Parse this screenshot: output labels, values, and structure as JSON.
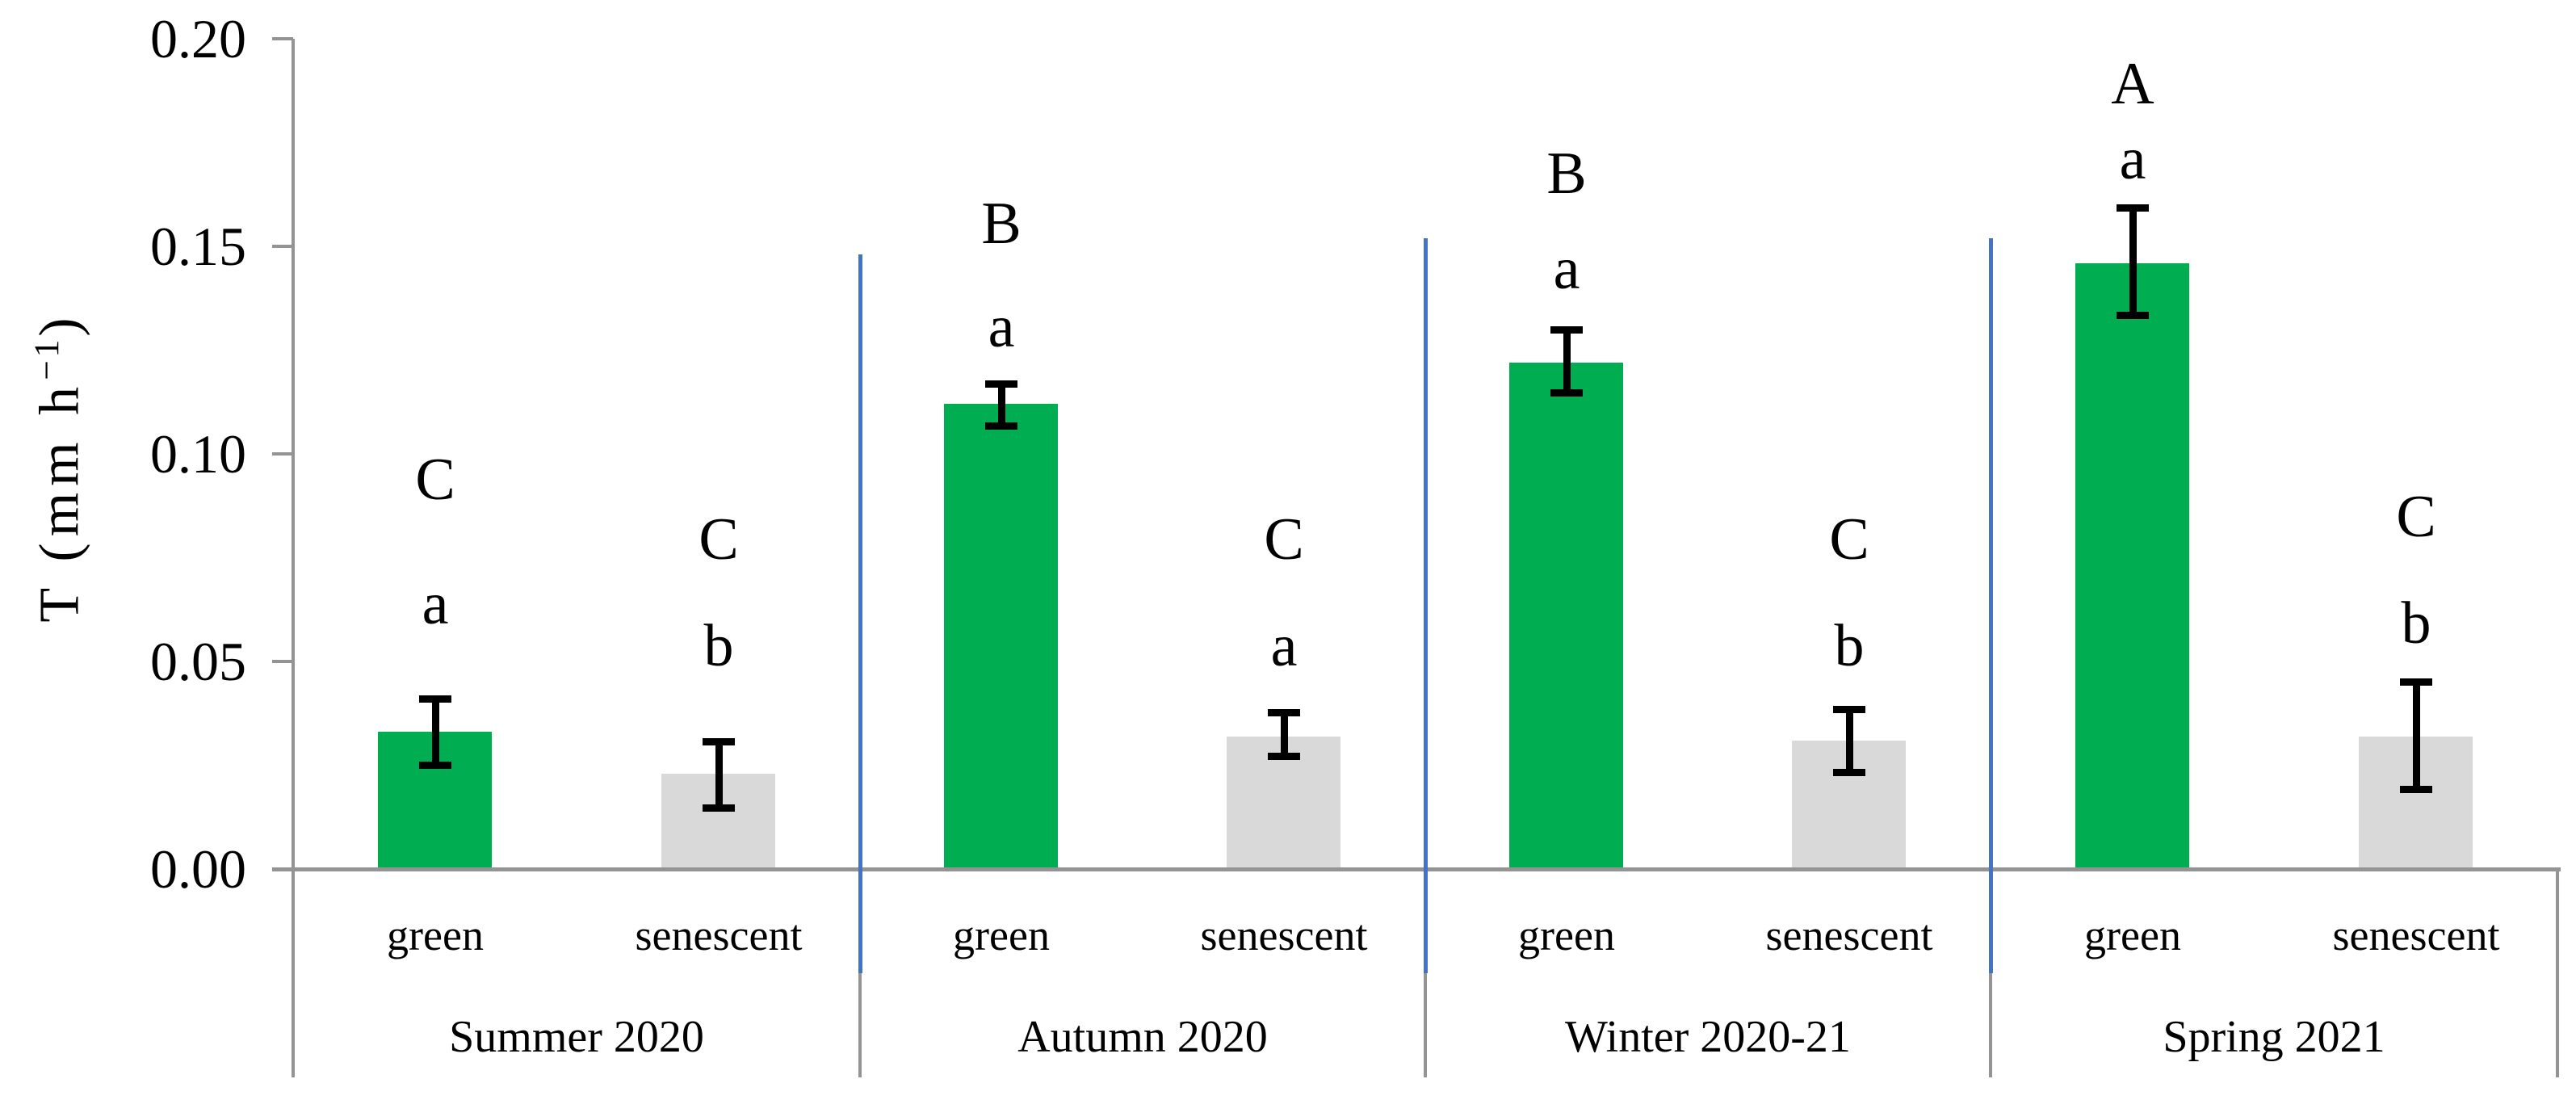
{
  "chart_data": {
    "type": "bar",
    "title": "",
    "ylabel": "T (mm h⁻¹)",
    "ylabel_parts": {
      "base": "T (mm h",
      "sup": "−1",
      "close": ")"
    },
    "ylim": [
      0.0,
      0.2
    ],
    "grid": false,
    "legend_position": "none",
    "yticks": [
      {
        "label": "0.00",
        "value": 0.0
      },
      {
        "label": "0.05",
        "value": 0.05
      },
      {
        "label": "0.10",
        "value": 0.1
      },
      {
        "label": "0.15",
        "value": 0.15
      },
      {
        "label": "0.20",
        "value": 0.2
      }
    ],
    "series": [
      {
        "name": "green",
        "color": "#00AD50"
      },
      {
        "name": "senescent",
        "color": "#D9D9D9"
      }
    ],
    "groups": [
      {
        "season": "Summer 2020",
        "bars": [
          {
            "category": "green",
            "value": 0.033,
            "err_top": 0.0411,
            "err_bot": 0.0251,
            "letters": [
              {
                "char": "C",
                "y": 0.0938
              },
              {
                "char": "a",
                "y": 0.0638
              }
            ]
          },
          {
            "category": "senescent",
            "value": 0.023,
            "err_top": 0.0307,
            "err_bot": 0.0148,
            "letters": [
              {
                "char": "C",
                "y": 0.0794
              },
              {
                "char": "b",
                "y": 0.0537
              }
            ]
          }
        ]
      },
      {
        "season": "Autumn 2020",
        "bars": [
          {
            "category": "green",
            "value": 0.112,
            "err_top": 0.1169,
            "err_bot": 0.1068,
            "letters": [
              {
                "char": "B",
                "y": 0.1554
              },
              {
                "char": "a",
                "y": 0.1305
              }
            ]
          },
          {
            "category": "senescent",
            "value": 0.032,
            "err_top": 0.0377,
            "err_bot": 0.0272,
            "letters": [
              {
                "char": "C",
                "y": 0.0794
              },
              {
                "char": "a",
                "y": 0.0537
              }
            ]
          }
        ]
      },
      {
        "season": "Winter 2020-21",
        "bars": [
          {
            "category": "green",
            "value": 0.122,
            "err_top": 0.13,
            "err_bot": 0.1148,
            "letters": [
              {
                "char": "B",
                "y": 0.1675
              },
              {
                "char": "a",
                "y": 0.1446
              }
            ]
          },
          {
            "category": "senescent",
            "value": 0.031,
            "err_top": 0.0385,
            "err_bot": 0.0233,
            "letters": [
              {
                "char": "C",
                "y": 0.0794
              },
              {
                "char": "b",
                "y": 0.0537
              }
            ]
          }
        ]
      },
      {
        "season": "Spring 2021",
        "bars": [
          {
            "category": "green",
            "value": 0.146,
            "err_top": 0.1593,
            "err_bot": 0.1335,
            "letters": [
              {
                "char": "A",
                "y": 0.1891
              },
              {
                "char": "a",
                "y": 0.171
              }
            ]
          },
          {
            "category": "senescent",
            "value": 0.032,
            "err_top": 0.0451,
            "err_bot": 0.0193,
            "letters": [
              {
                "char": "C",
                "y": 0.0848
              },
              {
                "char": "b",
                "y": 0.0591
              }
            ]
          }
        ]
      }
    ],
    "separators": [
      {
        "after": "Summer 2020",
        "top_value": 0.148
      },
      {
        "after": "Autumn 2020",
        "top_value": 0.152
      },
      {
        "after": "Winter 2020-21",
        "top_value": 0.152
      }
    ],
    "colors": {
      "bar_green": "#00AD50",
      "bar_senescent": "#D9D9D9",
      "axis": "#949494",
      "separator_blue": "#4472C4",
      "error_bar": "#000000",
      "text": "#000000"
    }
  }
}
